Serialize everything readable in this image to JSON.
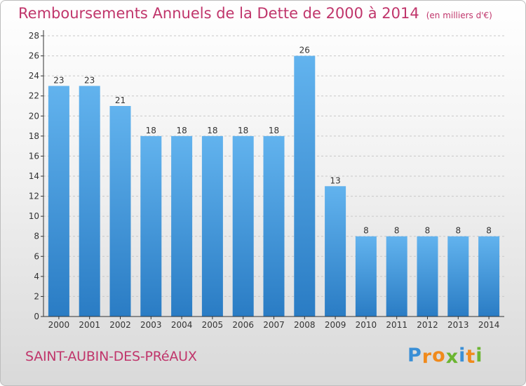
{
  "title": "Remboursements Annuels de la Dette de 2000 à 2014",
  "subtitle": "(en milliers d'€)",
  "commune": "SAINT-AUBIN-DES-PRéAUX",
  "logo": {
    "letters": [
      "P",
      "r",
      "o",
      "x",
      "i",
      "t",
      "i"
    ],
    "colors": [
      "#3a8fd6",
      "#f08a1c",
      "#f08a1c",
      "#6bb531",
      "#3a8fd6",
      "#f08a1c",
      "#6bb531"
    ]
  },
  "colors": {
    "bar_light": "#62b3ee",
    "bar_dark": "#2a7cc4",
    "axis": "#333333",
    "grid": "#c8c8c8",
    "title": "#c0356b"
  },
  "chart_data": {
    "type": "bar",
    "categories": [
      "2000",
      "2001",
      "2002",
      "2003",
      "2004",
      "2005",
      "2006",
      "2007",
      "2008",
      "2009",
      "2010",
      "2011",
      "2012",
      "2013",
      "2014"
    ],
    "values": [
      23,
      23,
      21,
      18,
      18,
      18,
      18,
      18,
      26,
      13,
      8,
      8,
      8,
      8,
      8
    ],
    "ylim": [
      0,
      28
    ],
    "yticks": [
      0,
      2,
      4,
      6,
      8,
      10,
      12,
      14,
      16,
      18,
      20,
      22,
      24,
      26,
      28
    ],
    "grid": true,
    "data_labels": true
  }
}
